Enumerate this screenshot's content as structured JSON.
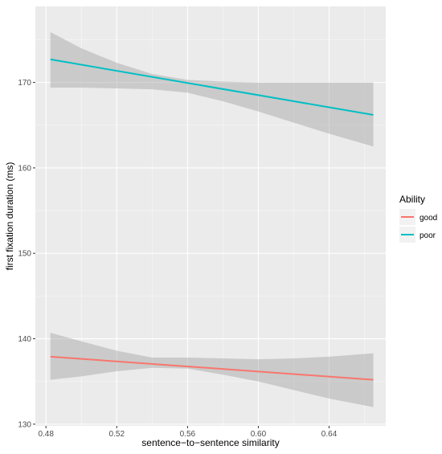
{
  "chart_data": {
    "type": "line",
    "title": "",
    "xlabel": "sentence−to−sentence similarity",
    "ylabel": "first fixation duration (ms)",
    "xlim": [
      0.474,
      0.672
    ],
    "ylim": [
      129.8,
      178.9
    ],
    "x_ticks": [
      0.48,
      0.52,
      0.56,
      0.6,
      0.64
    ],
    "x_tick_labels": [
      "0.48",
      "0.52",
      "0.56",
      "0.60",
      "0.64"
    ],
    "y_ticks": [
      130,
      140,
      150,
      160,
      170
    ],
    "y_tick_labels": [
      "130",
      "140",
      "150",
      "160",
      "170"
    ],
    "grid": true,
    "panel_background": "#ebebeb",
    "legend": {
      "title": "Ability",
      "position": "right",
      "entries": [
        "good",
        "poor"
      ]
    },
    "series": [
      {
        "name": "good",
        "color": "#f8766d",
        "x": [
          0.4825,
          0.665
        ],
        "y": [
          137.9,
          135.2
        ],
        "ribbon_x": [
          0.4825,
          0.5,
          0.52,
          0.54,
          0.56,
          0.58,
          0.6,
          0.62,
          0.64,
          0.665
        ],
        "ribbon_lower": [
          135.2,
          135.6,
          136.2,
          136.6,
          136.5,
          135.8,
          135.0,
          134.0,
          133.0,
          132.0
        ],
        "ribbon_upper": [
          140.7,
          139.7,
          138.6,
          137.8,
          137.8,
          137.7,
          137.6,
          137.7,
          137.9,
          138.3
        ]
      },
      {
        "name": "poor",
        "color": "#00bfc4",
        "x": [
          0.4825,
          0.665
        ],
        "y": [
          172.7,
          166.2
        ],
        "ribbon_x": [
          0.4825,
          0.5,
          0.52,
          0.54,
          0.56,
          0.58,
          0.6,
          0.62,
          0.64,
          0.665
        ],
        "ribbon_lower": [
          169.4,
          169.4,
          169.3,
          169.2,
          168.8,
          167.8,
          166.6,
          165.3,
          164.0,
          162.5
        ],
        "ribbon_upper": [
          175.9,
          174.0,
          172.3,
          171.0,
          170.3,
          170.1,
          170.0,
          170.0,
          170.0,
          170.0
        ]
      }
    ]
  }
}
